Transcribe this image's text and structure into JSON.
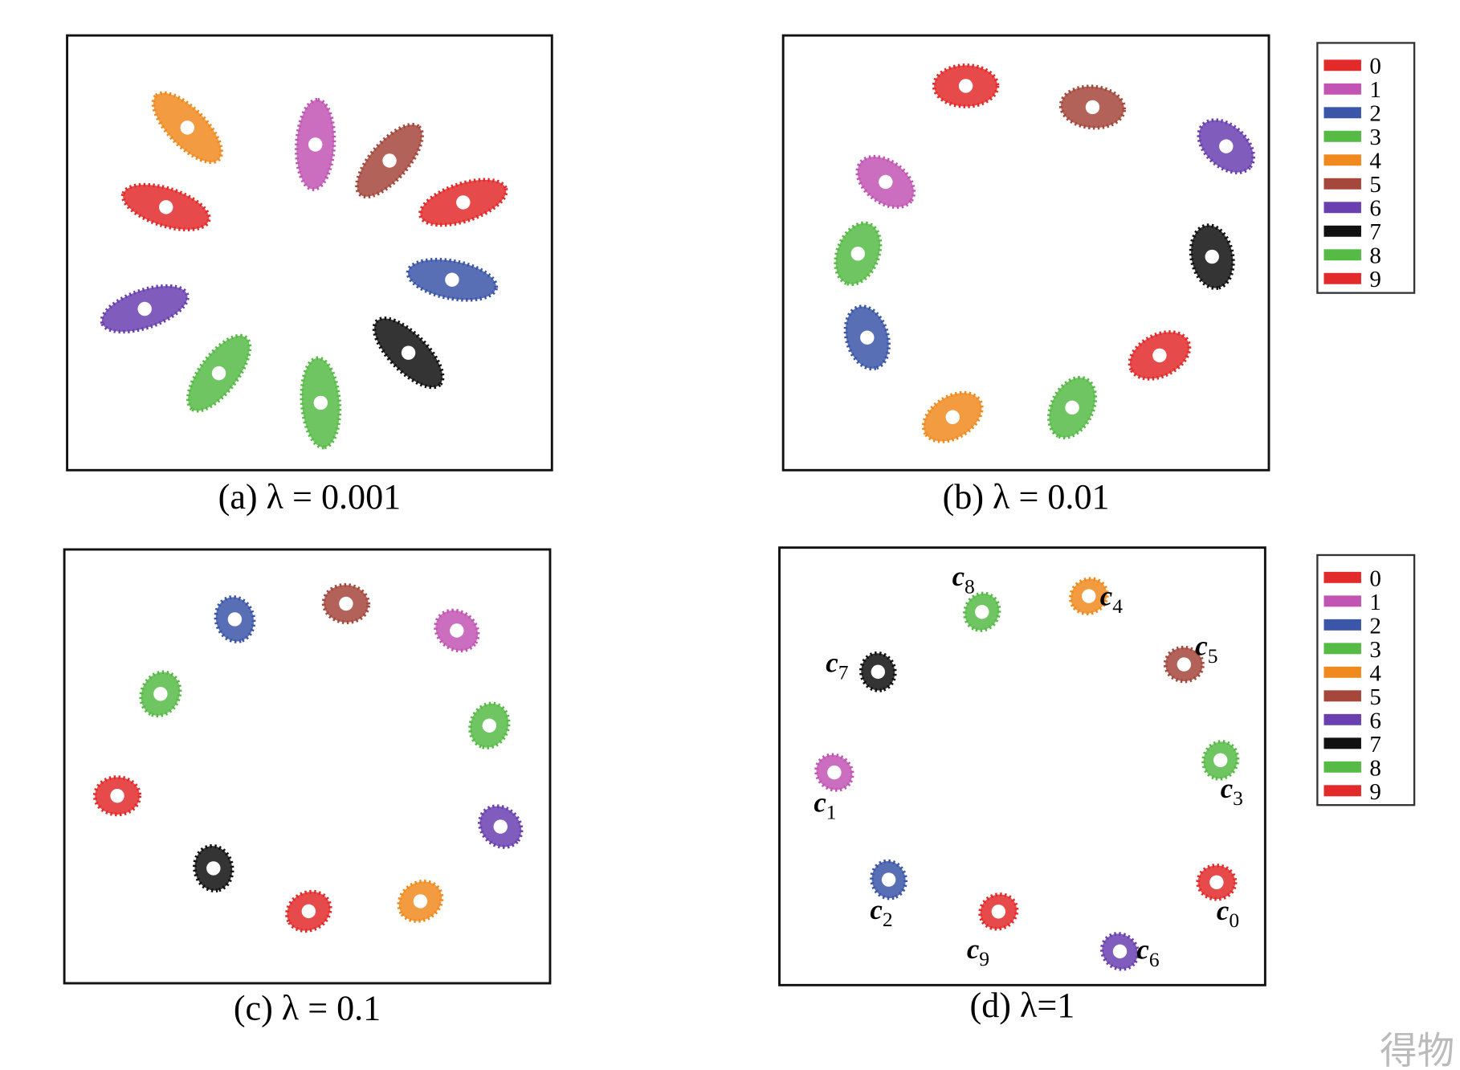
{
  "chart_data": [
    {
      "type": "scatter",
      "caption": "(a)  λ = 0.001",
      "xlim": [
        0,
        100
      ],
      "ylim": [
        0,
        100
      ],
      "legend": false,
      "series": [
        {
          "name": "0",
          "color": "#e32a2a",
          "x": [
            20.4
          ],
          "y": [
            60.5
          ]
        },
        {
          "name": "1",
          "color": "#c255b4",
          "x": [
            51.2
          ],
          "y": [
            74.9
          ]
        },
        {
          "name": "2",
          "color": "#3b55a8",
          "x": [
            79.4
          ],
          "y": [
            43.8
          ]
        },
        {
          "name": "3",
          "color": "#56bb45",
          "x": [
            31.3
          ],
          "y": [
            22.3
          ]
        },
        {
          "name": "4",
          "color": "#f08a1e",
          "x": [
            24.8
          ],
          "y": [
            78.8
          ]
        },
        {
          "name": "5",
          "color": "#a5473b",
          "x": [
            66.5
          ],
          "y": [
            71.2
          ]
        },
        {
          "name": "6",
          "color": "#6a3fb0",
          "x": [
            16.0
          ],
          "y": [
            37.1
          ]
        },
        {
          "name": "7",
          "color": "#111111",
          "x": [
            70.4
          ],
          "y": [
            27.0
          ]
        },
        {
          "name": "8",
          "color": "#56bb45",
          "x": [
            52.3
          ],
          "y": [
            15.5
          ]
        },
        {
          "name": "9",
          "color": "#e32a2a",
          "x": [
            81.7
          ],
          "y": [
            61.6
          ]
        }
      ]
    },
    {
      "type": "scatter",
      "caption": "(b)  λ = 0.01",
      "xlim": [
        0,
        100
      ],
      "ylim": [
        0,
        100
      ],
      "legend": true,
      "series": [
        {
          "name": "0",
          "color": "#e32a2a",
          "x": [
            37.6
          ],
          "y": [
            88.4
          ]
        },
        {
          "name": "1",
          "color": "#c255b4",
          "x": [
            21.1
          ],
          "y": [
            66.3
          ]
        },
        {
          "name": "2",
          "color": "#3b55a8",
          "x": [
            17.3
          ],
          "y": [
            30.5
          ]
        },
        {
          "name": "3",
          "color": "#56bb45",
          "x": [
            15.4
          ],
          "y": [
            49.8
          ]
        },
        {
          "name": "4",
          "color": "#f08a1e",
          "x": [
            34.9
          ],
          "y": [
            12.2
          ]
        },
        {
          "name": "5",
          "color": "#a5473b",
          "x": [
            63.7
          ],
          "y": [
            83.5
          ]
        },
        {
          "name": "6",
          "color": "#6a3fb0",
          "x": [
            91.2
          ],
          "y": [
            74.5
          ]
        },
        {
          "name": "7",
          "color": "#111111",
          "x": [
            88.3
          ],
          "y": [
            49.1
          ]
        },
        {
          "name": "8",
          "color": "#56bb45",
          "x": [
            59.5
          ],
          "y": [
            14.4
          ]
        },
        {
          "name": "9",
          "color": "#e32a2a",
          "x": [
            77.5
          ],
          "y": [
            26.4
          ]
        }
      ]
    },
    {
      "type": "scatter",
      "caption": "(c)  λ = 0.1",
      "xlim": [
        0,
        100
      ],
      "ylim": [
        0,
        100
      ],
      "legend": false,
      "series": [
        {
          "name": "0",
          "color": "#e32a2a",
          "x": [
            10.9
          ],
          "y": [
            43.2
          ]
        },
        {
          "name": "1",
          "color": "#c255b4",
          "x": [
            80.8
          ],
          "y": [
            81.3
          ]
        },
        {
          "name": "2",
          "color": "#3b55a8",
          "x": [
            35.1
          ],
          "y": [
            83.9
          ]
        },
        {
          "name": "3",
          "color": "#56bb45",
          "x": [
            87.5
          ],
          "y": [
            59.4
          ]
        },
        {
          "name": "4",
          "color": "#f08a1e",
          "x": [
            73.3
          ],
          "y": [
            18.9
          ]
        },
        {
          "name": "5",
          "color": "#a5473b",
          "x": [
            58.0
          ],
          "y": [
            87.5
          ]
        },
        {
          "name": "6",
          "color": "#6a3fb0",
          "x": [
            89.8
          ],
          "y": [
            36.1
          ]
        },
        {
          "name": "7",
          "color": "#111111",
          "x": [
            30.7
          ],
          "y": [
            26.5
          ]
        },
        {
          "name": "8",
          "color": "#56bb45",
          "x": [
            19.8
          ],
          "y": [
            66.7
          ]
        },
        {
          "name": "9",
          "color": "#e32a2a",
          "x": [
            50.3
          ],
          "y": [
            16.6
          ]
        }
      ]
    },
    {
      "type": "scatter",
      "caption": "(d)  λ=1",
      "xlim": [
        0,
        100
      ],
      "ylim": [
        0,
        100
      ],
      "legend": true,
      "series": [
        {
          "name": "0",
          "color": "#e32a2a",
          "x": [
            90.0
          ],
          "y": [
            23.5
          ],
          "label": "c",
          "label_sub": "0"
        },
        {
          "name": "1",
          "color": "#c255b4",
          "x": [
            11.3
          ],
          "y": [
            48.6
          ],
          "label": "c",
          "label_sub": "1"
        },
        {
          "name": "2",
          "color": "#3b55a8",
          "x": [
            22.5
          ],
          "y": [
            24.1
          ],
          "label": "c",
          "label_sub": "2"
        },
        {
          "name": "3",
          "color": "#56bb45",
          "x": [
            90.8
          ],
          "y": [
            51.4
          ],
          "label": "c",
          "label_sub": "3"
        },
        {
          "name": "4",
          "color": "#f08a1e",
          "x": [
            63.7
          ],
          "y": [
            88.9
          ],
          "label": "c",
          "label_sub": "4"
        },
        {
          "name": "5",
          "color": "#a5473b",
          "x": [
            83.3
          ],
          "y": [
            73.3
          ],
          "label": "c",
          "label_sub": "5"
        },
        {
          "name": "6",
          "color": "#6a3fb0",
          "x": [
            70.1
          ],
          "y": [
            7.7
          ],
          "label": "c",
          "label_sub": "6"
        },
        {
          "name": "7",
          "color": "#111111",
          "x": [
            20.3
          ],
          "y": [
            71.6
          ],
          "label": "c",
          "label_sub": "7"
        },
        {
          "name": "8",
          "color": "#56bb45",
          "x": [
            41.7
          ],
          "y": [
            85.3
          ],
          "label": "c",
          "label_sub": "8"
        },
        {
          "name": "9",
          "color": "#e32a2a",
          "x": [
            45.1
          ],
          "y": [
            16.8
          ],
          "label": "c",
          "label_sub": "9"
        }
      ]
    }
  ],
  "watermark": "得物"
}
